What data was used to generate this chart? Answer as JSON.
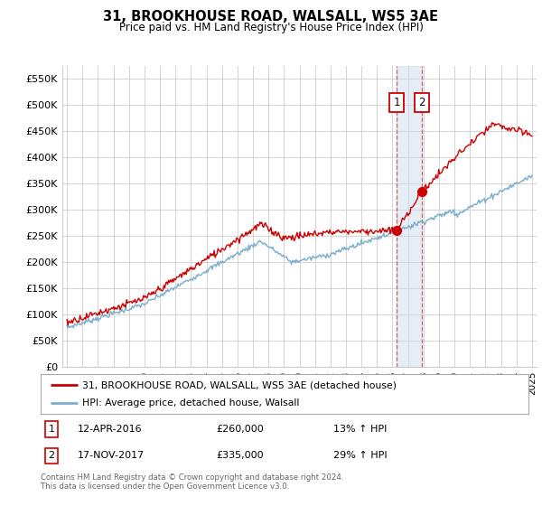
{
  "title": "31, BROOKHOUSE ROAD, WALSALL, WS5 3AE",
  "subtitle": "Price paid vs. HM Land Registry's House Price Index (HPI)",
  "footer": "Contains HM Land Registry data © Crown copyright and database right 2024.\nThis data is licensed under the Open Government Licence v3.0.",
  "legend_line1": "31, BROOKHOUSE ROAD, WALSALL, WS5 3AE (detached house)",
  "legend_line2": "HPI: Average price, detached house, Walsall",
  "marker1_label": "1",
  "marker1_date": "12-APR-2016",
  "marker1_price": "£260,000",
  "marker1_hpi": "13% ↑ HPI",
  "marker2_label": "2",
  "marker2_date": "17-NOV-2017",
  "marker2_price": "£335,000",
  "marker2_hpi": "29% ↑ HPI",
  "ylim": [
    0,
    575000
  ],
  "yticks": [
    0,
    50000,
    100000,
    150000,
    200000,
    250000,
    300000,
    350000,
    400000,
    450000,
    500000,
    550000
  ],
  "ytick_labels": [
    "£0",
    "£50K",
    "£100K",
    "£150K",
    "£200K",
    "£250K",
    "£300K",
    "£350K",
    "£400K",
    "£450K",
    "£500K",
    "£550K"
  ],
  "background_color": "#ffffff",
  "grid_color": "#cccccc",
  "red_color": "#cc0000",
  "blue_color": "#7aaecc",
  "shade_color": "#ccddef",
  "marker1_x": 2016.28,
  "marker2_x": 2017.89,
  "marker1_y": 260000,
  "marker2_y": 335000,
  "xmin": 1995,
  "xmax": 2025
}
